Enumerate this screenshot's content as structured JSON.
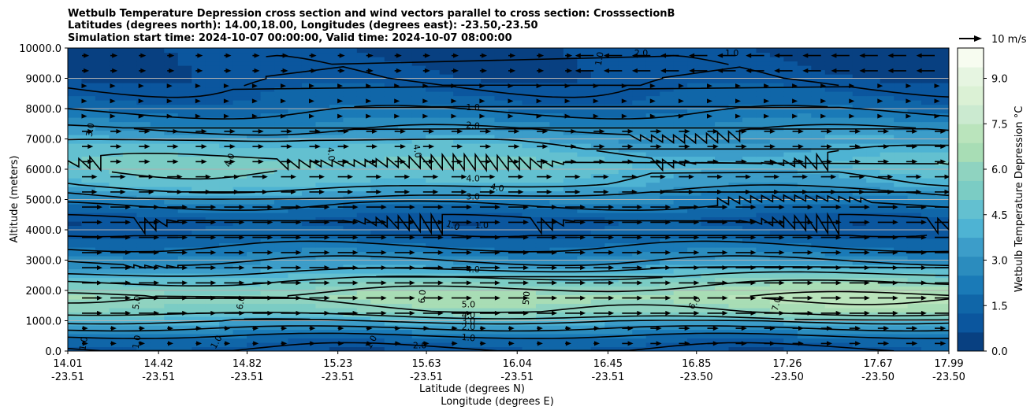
{
  "chart_data": {
    "type": "contourf",
    "title_lines": [
      "Wetbulb Temperature Depression cross section and wind vectors parallel to cross section: CrosssectionB",
      "Latitudes (degrees north): 14.00,18.00, Longitudes (degrees east): -23.50,-23.50",
      "Simulation start time: 2024-10-07 00:00:00, Valid time: 2024-10-07 08:00:00"
    ],
    "ylabel": "Altitude (meters)",
    "xlabel_lines": [
      "Latitude (degrees N)",
      "Longitude (degrees E)"
    ],
    "xlim": [
      14.01,
      17.99
    ],
    "ylim": [
      0,
      10000
    ],
    "y_ticks": [
      {
        "v": 0,
        "label": "0.0"
      },
      {
        "v": 1000,
        "label": "1000.0"
      },
      {
        "v": 2000,
        "label": "2000.0"
      },
      {
        "v": 3000,
        "label": "3000.0"
      },
      {
        "v": 4000,
        "label": "4000.0"
      },
      {
        "v": 5000,
        "label": "5000.0"
      },
      {
        "v": 6000,
        "label": "6000.0"
      },
      {
        "v": 7000,
        "label": "7000.0"
      },
      {
        "v": 8000,
        "label": "8000.0"
      },
      {
        "v": 9000,
        "label": "9000.0"
      },
      {
        "v": 10000,
        "label": "10000.0"
      }
    ],
    "x_ticks": [
      {
        "v": 14.01,
        "lat": "14.01",
        "lon": "-23.51"
      },
      {
        "v": 14.42,
        "lat": "14.42",
        "lon": "-23.51"
      },
      {
        "v": 14.82,
        "lat": "14.82",
        "lon": "-23.51"
      },
      {
        "v": 15.23,
        "lat": "15.23",
        "lon": "-23.51"
      },
      {
        "v": 15.63,
        "lat": "15.63",
        "lon": "-23.51"
      },
      {
        "v": 16.04,
        "lat": "16.04",
        "lon": "-23.51"
      },
      {
        "v": 16.45,
        "lat": "16.45",
        "lon": "-23.51"
      },
      {
        "v": 16.85,
        "lat": "16.85",
        "lon": "-23.50"
      },
      {
        "v": 17.26,
        "lat": "17.26",
        "lon": "-23.50"
      },
      {
        "v": 17.67,
        "lat": "17.67",
        "lon": "-23.50"
      },
      {
        "v": 17.99,
        "lat": "17.99",
        "lon": "-23.50"
      }
    ],
    "colorbar": {
      "label": "Wetbulb Temperature Depression °C",
      "range": [
        0,
        10
      ],
      "tick_values": [
        0,
        1.5,
        3,
        4.5,
        6,
        7.5,
        9
      ],
      "tick_labels": [
        "0.0",
        "1.5",
        "3.0",
        "4.5",
        "6.0",
        "7.5",
        "9.0"
      ],
      "colors": [
        "#084081",
        "#0b569e",
        "#1066a8",
        "#1a7ab7",
        "#2b8cbe",
        "#3c9dc9",
        "#4eb3d3",
        "#63c0d0",
        "#7bccc4",
        "#8fd3c0",
        "#a8ddb5",
        "#bae4bc",
        "#cbead0",
        "#dbf1d5",
        "#e6f5e1",
        "#f7fcf0"
      ]
    },
    "quiver_key": {
      "value": 10,
      "label": "10 m/s"
    },
    "field_profile": [
      {
        "z": 0,
        "v": 0.8
      },
      {
        "z": 400,
        "v": 1.6
      },
      {
        "z": 800,
        "v": 3.2
      },
      {
        "z": 1300,
        "v": 5.6
      },
      {
        "z": 1800,
        "v": 6.4
      },
      {
        "z": 2300,
        "v": 5.2
      },
      {
        "z": 2800,
        "v": 3.4
      },
      {
        "z": 3300,
        "v": 2.3
      },
      {
        "z": 3800,
        "v": 1.3
      },
      {
        "z": 4300,
        "v": 0.9
      },
      {
        "z": 4900,
        "v": 2.2
      },
      {
        "z": 5500,
        "v": 4.0
      },
      {
        "z": 6200,
        "v": 4.9
      },
      {
        "z": 6800,
        "v": 4.0
      },
      {
        "z": 7500,
        "v": 2.6
      },
      {
        "z": 8200,
        "v": 1.5
      },
      {
        "z": 9000,
        "v": 0.8
      },
      {
        "z": 10000,
        "v": 0.6
      }
    ],
    "contour_labels": [
      {
        "x": 14.11,
        "z": 7300,
        "text": "3.0",
        "rot": -80
      },
      {
        "x": 14.74,
        "z": 6300,
        "text": "4.0",
        "rot": -70
      },
      {
        "x": 15.2,
        "z": 6500,
        "text": "4.0",
        "rot": 85
      },
      {
        "x": 15.59,
        "z": 6600,
        "text": "4.0",
        "rot": 80
      },
      {
        "x": 15.84,
        "z": 8050,
        "text": "1.0",
        "rot": 0
      },
      {
        "x": 15.84,
        "z": 7450,
        "text": "2.0",
        "rot": 5
      },
      {
        "x": 15.84,
        "z": 5700,
        "text": "4.0",
        "rot": 0
      },
      {
        "x": 15.95,
        "z": 5400,
        "text": "4.0",
        "rot": 10
      },
      {
        "x": 15.84,
        "z": 5100,
        "text": "3.0",
        "rot": 0
      },
      {
        "x": 15.88,
        "z": 4150,
        "text": "1.0",
        "rot": 0
      },
      {
        "x": 15.75,
        "z": 4150,
        "text": "1.0",
        "rot": 20
      },
      {
        "x": 15.84,
        "z": 2700,
        "text": "4.0",
        "rot": 0
      },
      {
        "x": 15.61,
        "z": 1800,
        "text": "6.0",
        "rot": -85
      },
      {
        "x": 15.82,
        "z": 1550,
        "text": "5.0",
        "rot": 0
      },
      {
        "x": 15.82,
        "z": 1200,
        "text": "4.0",
        "rot": 0
      },
      {
        "x": 15.82,
        "z": 1000,
        "text": "3.0",
        "rot": 0
      },
      {
        "x": 15.82,
        "z": 800,
        "text": "2.0",
        "rot": 0
      },
      {
        "x": 15.82,
        "z": 450,
        "text": "1.0",
        "rot": 5
      },
      {
        "x": 16.08,
        "z": 1750,
        "text": "5.0",
        "rot": -85
      },
      {
        "x": 16.84,
        "z": 1600,
        "text": "6.0",
        "rot": -55
      },
      {
        "x": 17.21,
        "z": 1550,
        "text": "7.0",
        "rot": -75
      },
      {
        "x": 14.79,
        "z": 1600,
        "text": "6.0",
        "rot": -80
      },
      {
        "x": 14.32,
        "z": 1600,
        "text": "5.0",
        "rot": -80
      },
      {
        "x": 14.08,
        "z": 250,
        "text": "1.0",
        "rot": -80
      },
      {
        "x": 14.32,
        "z": 300,
        "text": "1.0",
        "rot": -80
      },
      {
        "x": 15.6,
        "z": 200,
        "text": "2.0",
        "rot": 0
      },
      {
        "x": 14.68,
        "z": 300,
        "text": "1.0",
        "rot": -60
      },
      {
        "x": 15.38,
        "z": 300,
        "text": "1.0",
        "rot": -60
      },
      {
        "x": 17.01,
        "z": 9850,
        "text": "1.0",
        "rot": 0
      },
      {
        "x": 16.41,
        "z": 9650,
        "text": "1.0",
        "rot": -80
      },
      {
        "x": 16.6,
        "z": 9850,
        "text": "2.0",
        "rot": 0
      }
    ]
  }
}
